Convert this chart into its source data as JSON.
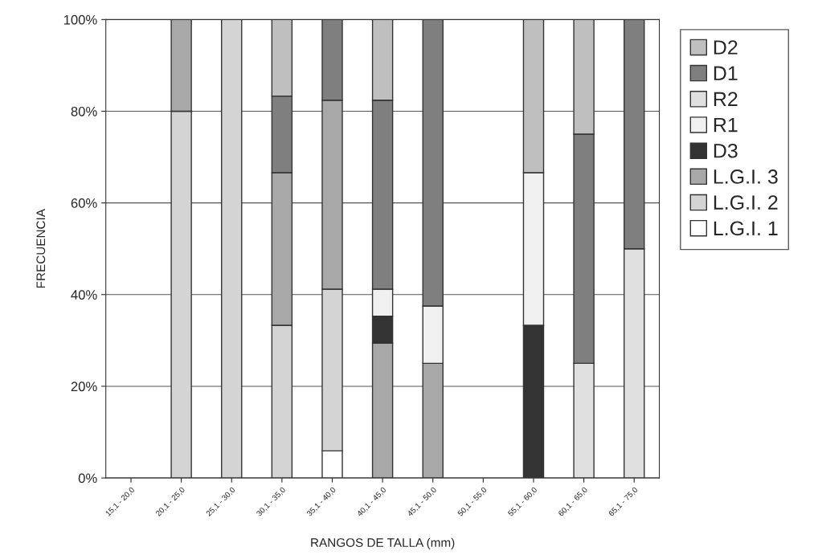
{
  "chart_data": {
    "type": "bar",
    "stacked": true,
    "xlabel": "RANGOS DE TALLA (mm)",
    "ylabel": "FRECUENCIA",
    "categories": [
      "15,1 - 20,0",
      "20,1 - 25,0",
      "25,1 - 30,0",
      "30,1 - 35,0",
      "35,1 - 40,0",
      "40,1 - 45,0",
      "45,1 - 50,0",
      "50,1 - 55,0",
      "55,1 - 60,0",
      "60,1 - 65,0",
      "65,1 - 75,0"
    ],
    "series": [
      {
        "name": "L.G.I. 1",
        "color": "#ffffff",
        "values": [
          0,
          0,
          0,
          0,
          5.9,
          0,
          0,
          0,
          0,
          0,
          0
        ]
      },
      {
        "name": "L.G.I. 2",
        "color": "#d4d4d4",
        "values": [
          0,
          80,
          100,
          33.3,
          35.3,
          0,
          0,
          0,
          0,
          0,
          0
        ]
      },
      {
        "name": "L.G.I. 3",
        "color": "#a8a8a8",
        "values": [
          0,
          20,
          0,
          33.3,
          41.2,
          29.4,
          25,
          0,
          0,
          0,
          0
        ]
      },
      {
        "name": "D3",
        "color": "#333333",
        "values": [
          0,
          0,
          0,
          0,
          0,
          5.9,
          0,
          0,
          33.3,
          0,
          0
        ]
      },
      {
        "name": "R1",
        "color": "#f0f0f0",
        "values": [
          0,
          0,
          0,
          0,
          0,
          5.9,
          12.5,
          0,
          33.3,
          0,
          0
        ]
      },
      {
        "name": "R2",
        "color": "#e0e0e0",
        "values": [
          0,
          0,
          0,
          0,
          0,
          0,
          0,
          0,
          0,
          25,
          50
        ]
      },
      {
        "name": "D1",
        "color": "#7f7f7f",
        "values": [
          0,
          0,
          0,
          16.7,
          17.6,
          41.2,
          62.5,
          0,
          0,
          50,
          50
        ]
      },
      {
        "name": "D2",
        "color": "#bfbfbf",
        "values": [
          0,
          0,
          0,
          16.7,
          0,
          17.6,
          0,
          0,
          33.4,
          25,
          0
        ]
      }
    ],
    "ylim": [
      0,
      100
    ],
    "yticks": [
      {
        "value": 0,
        "label": "0%"
      },
      {
        "value": 20,
        "label": "20%"
      },
      {
        "value": 40,
        "label": "40%"
      },
      {
        "value": 60,
        "label": "60%"
      },
      {
        "value": 80,
        "label": "80%"
      },
      {
        "value": 100,
        "label": "100%"
      }
    ],
    "grid": "y",
    "legend": "right"
  }
}
